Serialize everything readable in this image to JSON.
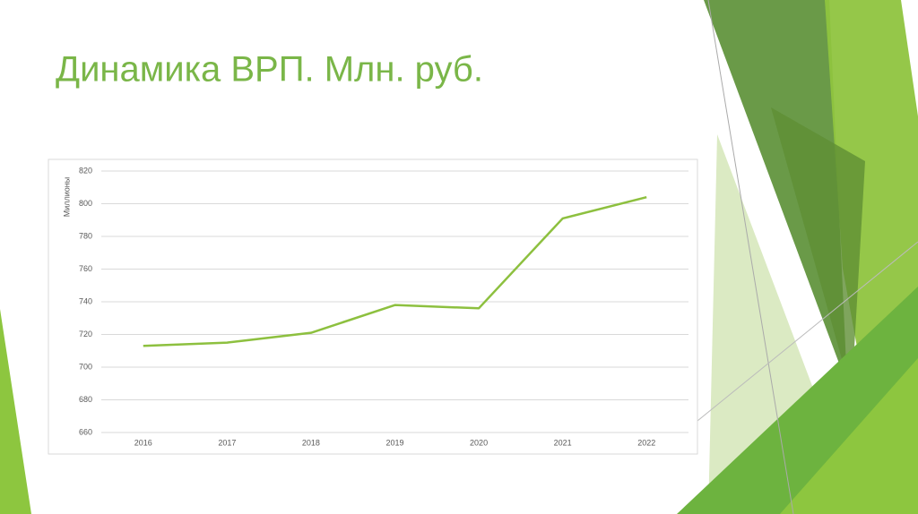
{
  "chart_data": {
    "type": "line",
    "title": "Динамика ВРП. Млн. руб.",
    "y_label": "Миллионы",
    "categories": [
      "2016",
      "2017",
      "2018",
      "2019",
      "2020",
      "2021",
      "2022"
    ],
    "values": [
      713,
      715,
      721,
      738,
      736,
      791,
      804
    ],
    "color": "#8dc03f",
    "ylim": [
      660,
      820
    ],
    "yticks": [
      660,
      680,
      700,
      720,
      740,
      760,
      780,
      800,
      820
    ],
    "grid": true
  }
}
